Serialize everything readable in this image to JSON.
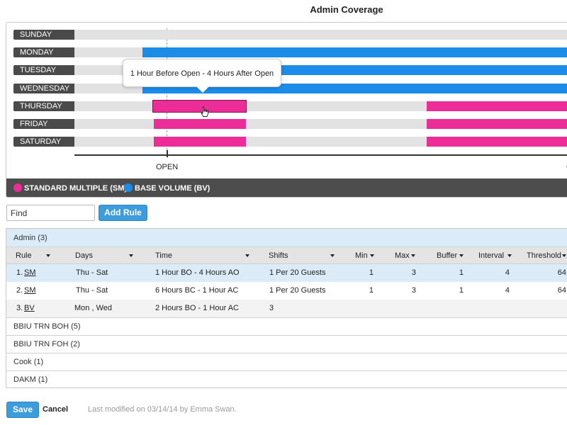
{
  "title": "Admin Coverage",
  "chart": {
    "days": [
      "SUNDAY",
      "MONDAY",
      "TUESDAY",
      "WEDNESDAY",
      "THURSDAY",
      "FRIDAY",
      "SATURDAY"
    ],
    "axis_label": "OPEN",
    "axis_label_right": "C",
    "tooltip": "1 Hour Before Open - 4 Hours After Open",
    "legend": [
      {
        "label": "STANDARD MULTIPLE (SM)",
        "color": "#ec2d97"
      },
      {
        "label": "BASE VOLUME (BV)",
        "color": "#1b8ce8"
      }
    ],
    "colors": {
      "sm": "#ec2d97",
      "bv": "#1b8ce8",
      "track": "#e2e2e2"
    }
  },
  "toolbar": {
    "find_value": "Find",
    "add_rule_label": "Add Rule"
  },
  "rules": {
    "active_group": "Admin (3)",
    "columns": [
      "Rule",
      "Days",
      "Time",
      "Shifts",
      "Min",
      "Max",
      "Buffer",
      "Interval",
      "Threshold"
    ],
    "rows": [
      {
        "num": "1.",
        "rule": "SM",
        "days": "Thu - Sat",
        "time": "1 Hour BO - 4 Hours AO",
        "shifts": "1 Per 20 Guests",
        "min": "1",
        "max": "3",
        "buffer": "1",
        "interval": "4",
        "threshold": "64"
      },
      {
        "num": "2.",
        "rule": "SM",
        "days": "Thu - Sat",
        "time": "6 Hours BC - 1 Hour AC",
        "shifts": "1 Per 20 Guests",
        "min": "1",
        "max": "3",
        "buffer": "1",
        "interval": "4",
        "threshold": "64"
      },
      {
        "num": "3.",
        "rule": "BV",
        "days": "Mon , Wed",
        "time": "2 Hours BO - 1 Hour AC",
        "shifts": "3",
        "min": "",
        "max": "",
        "buffer": "",
        "interval": "",
        "threshold": ""
      }
    ],
    "other_groups": [
      "BBIU TRN BOH (5)",
      "BBIU TRN FOH (2)",
      "Cook (1)",
      "DAKM (1)"
    ]
  },
  "footer": {
    "save_label": "Save",
    "cancel_label": "Cancel",
    "modified_text": "Last modified on 03/14/14 by Emma Swan."
  }
}
